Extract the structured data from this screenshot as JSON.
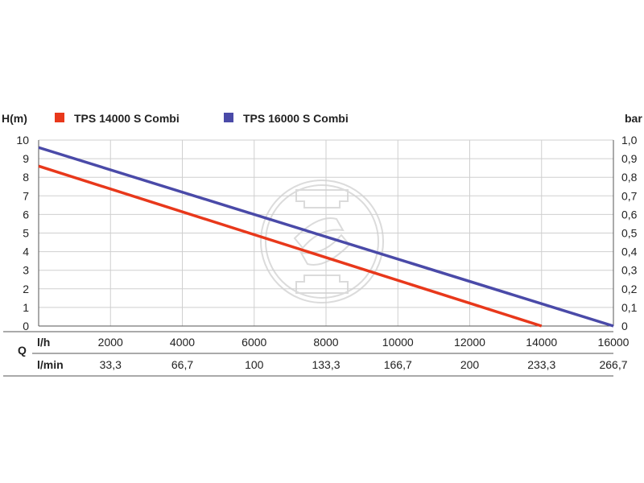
{
  "chart_data": {
    "type": "line",
    "title": "",
    "legend_position": "top",
    "ylabel_left": "H(m)",
    "ylabel_right": "bar",
    "xlabel": "Q",
    "x_unit_primary": "l/h",
    "x_unit_secondary": "l/min",
    "xlim": [
      0,
      16000
    ],
    "ylim_left": [
      0,
      10
    ],
    "ylim_right": [
      0,
      1.0
    ],
    "grid": true,
    "x_ticks_primary": [
      "2000",
      "4000",
      "6000",
      "8000",
      "10000",
      "12000",
      "14000",
      "16000"
    ],
    "x_tick_values": [
      2000,
      4000,
      6000,
      8000,
      10000,
      12000,
      14000,
      16000
    ],
    "x_ticks_secondary": [
      "33,3",
      "66,7",
      "100",
      "133,3",
      "166,7",
      "200",
      "233,3",
      "266,7"
    ],
    "y_ticks_left": [
      "0",
      "1",
      "2",
      "3",
      "4",
      "5",
      "6",
      "7",
      "8",
      "9",
      "10"
    ],
    "y_ticks_right": [
      "0",
      "0,1",
      "0,2",
      "0,3",
      "0,4",
      "0,5",
      "0,6",
      "0,7",
      "0,8",
      "0,9",
      "1,0"
    ],
    "series": [
      {
        "name": "TPS 14000 S Combi",
        "color": "#e8381b",
        "x": [
          0,
          14000
        ],
        "y": [
          8.6,
          0
        ]
      },
      {
        "name": "TPS 16000 S Combi",
        "color": "#4a4aa8",
        "x": [
          0,
          16000
        ],
        "y": [
          9.6,
          0
        ]
      }
    ]
  }
}
